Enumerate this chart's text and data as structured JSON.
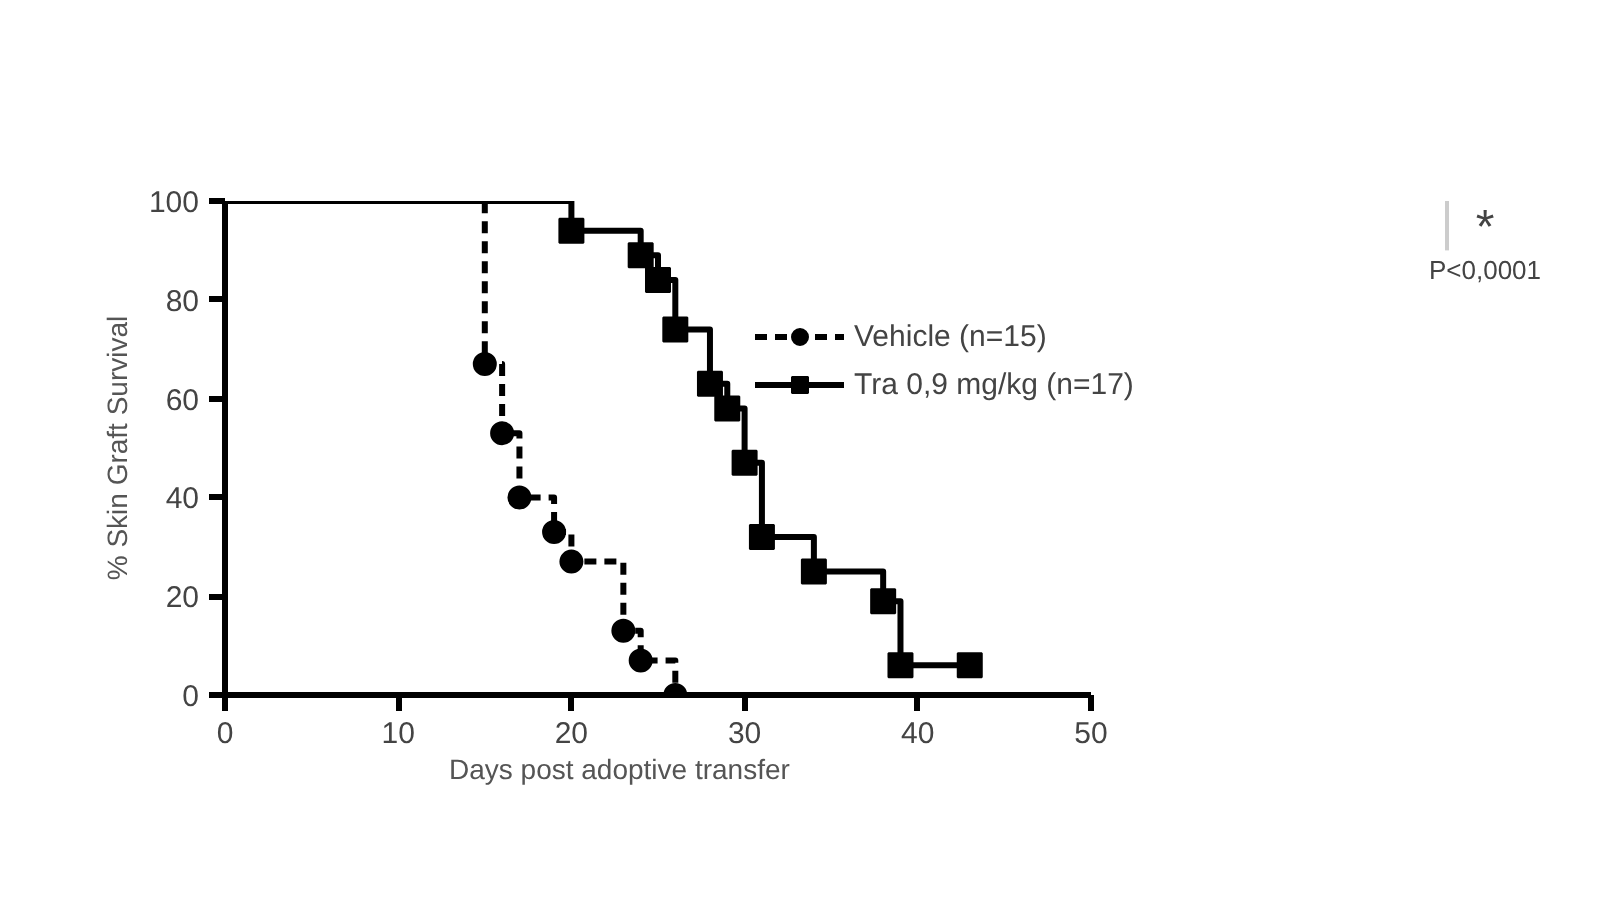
{
  "chart_data": {
    "type": "step",
    "xlabel": "Days post adoptive transfer",
    "ylabel": "% Skin Graft Survival",
    "xlim": [
      0,
      50
    ],
    "xticks": [
      0,
      10,
      20,
      30,
      40,
      50
    ],
    "ylim": [
      0,
      100
    ],
    "yticks": [
      0,
      20,
      40,
      60,
      80,
      100
    ],
    "grid": false,
    "legend": "top right",
    "series": [
      {
        "name": "Vehicle (n=15)",
        "color": "#000000",
        "line_style": "dashed",
        "marker": "circle",
        "x": [
          0,
          15,
          16,
          17,
          19,
          20,
          23,
          24,
          26
        ],
        "values": [
          100,
          67,
          53,
          40,
          33,
          27,
          13,
          7,
          0
        ]
      },
      {
        "name": "Tra 0,9 mg/kg (n=17)",
        "color": "#000000",
        "line_style": "solid",
        "marker": "square",
        "x": [
          0,
          20,
          24,
          25,
          26,
          28,
          29,
          30,
          31,
          34,
          38,
          39,
          43
        ],
        "values": [
          100,
          94,
          89,
          84,
          74,
          63,
          58,
          47,
          32,
          25,
          19,
          6,
          6
        ]
      }
    ],
    "annotations": [
      "*",
      "P<0,0001"
    ]
  }
}
